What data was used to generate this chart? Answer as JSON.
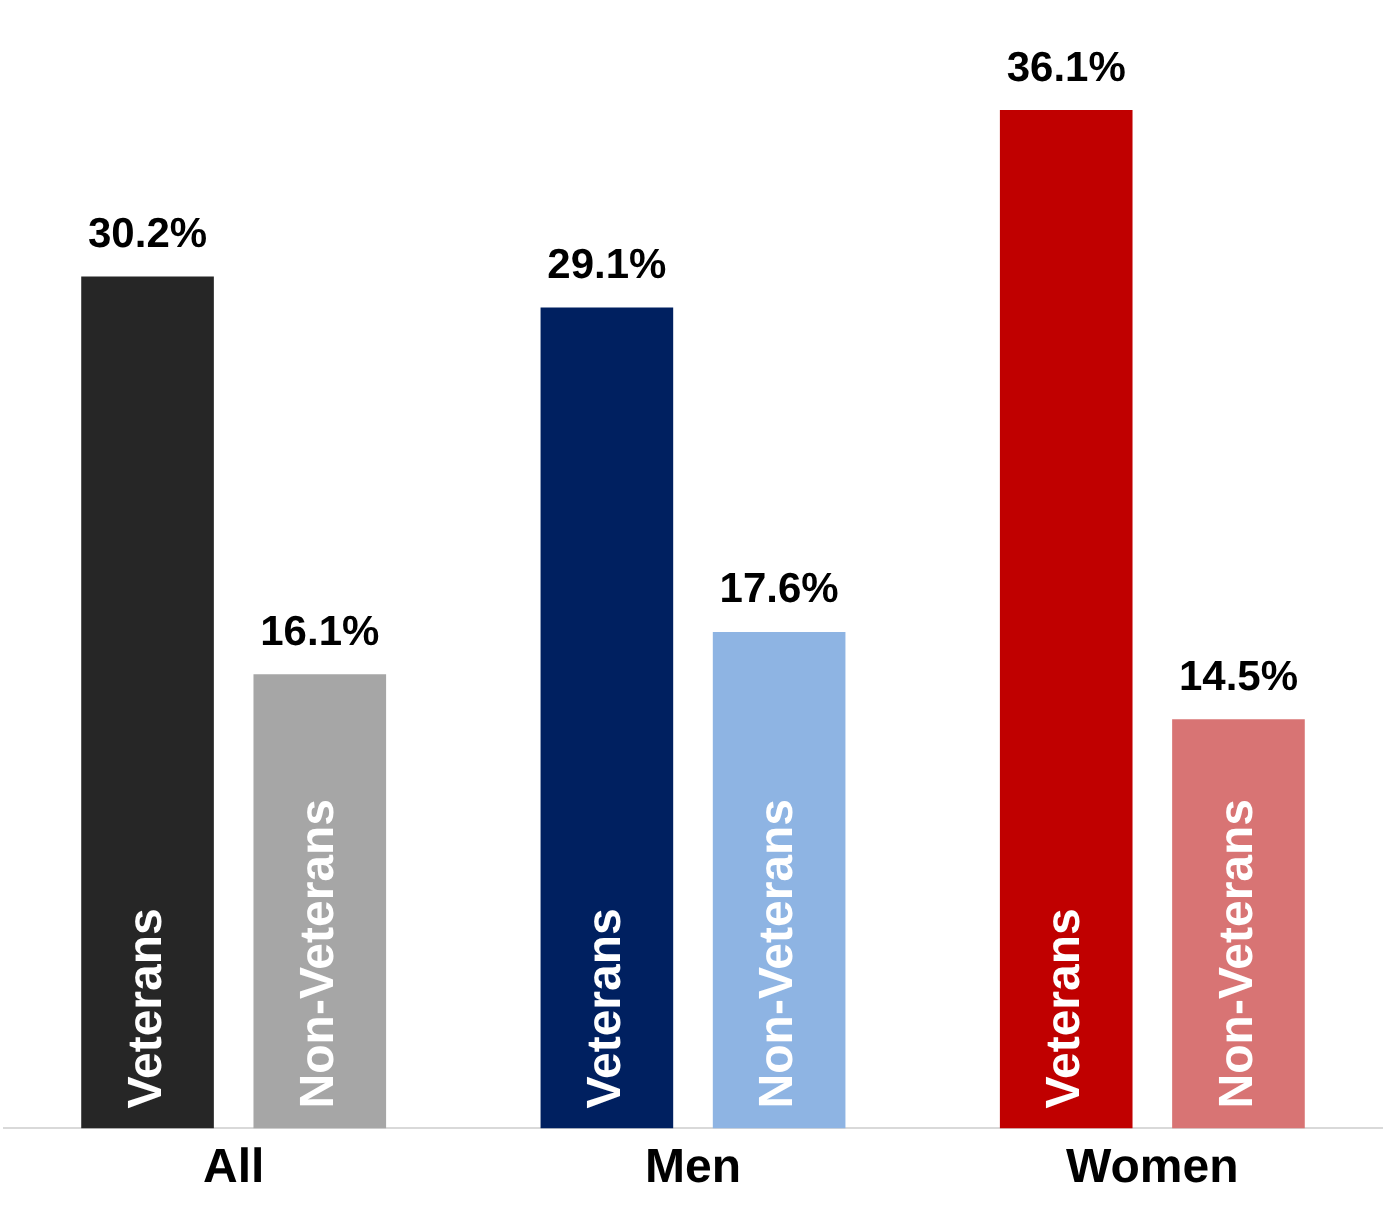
{
  "chart_data": {
    "type": "bar",
    "categories": [
      "All",
      "Men",
      "Women"
    ],
    "series": [
      {
        "name": "Veterans",
        "colors": [
          "#262626",
          "#002060",
          "#c00000"
        ],
        "values": [
          30.2,
          29.1,
          36.1
        ],
        "value_labels": [
          "30.2%",
          "29.1%",
          "36.1%"
        ]
      },
      {
        "name": "Non-Veterans",
        "colors": [
          "#a6a6a6",
          "#8eb4e3",
          "#d87474"
        ],
        "values": [
          16.1,
          17.6,
          14.5
        ],
        "value_labels": [
          "16.1%",
          "17.6%",
          "14.5%"
        ]
      }
    ],
    "grid": false,
    "legend": false
  }
}
